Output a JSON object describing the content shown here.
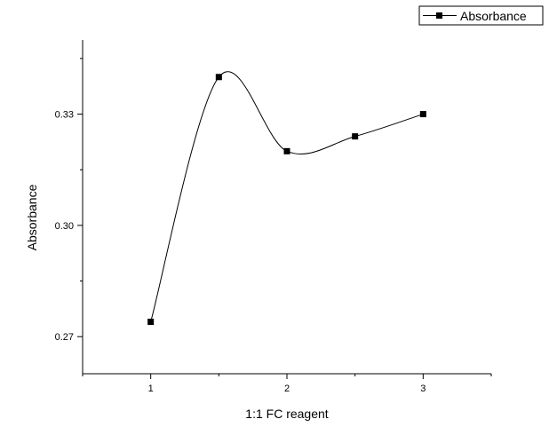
{
  "chart_data": {
    "type": "line",
    "xlabel": "1:1 FC reagent",
    "ylabel": "Absorbance",
    "xlim": [
      0.5,
      3.5
    ],
    "ylim": [
      0.26,
      0.35
    ],
    "x_ticks": [
      1,
      2,
      3
    ],
    "x_tick_labels": [
      "1",
      "2",
      "3"
    ],
    "y_ticks": [
      0.27,
      0.3,
      0.33
    ],
    "y_tick_labels": [
      "0.27",
      "0.30",
      "0.33"
    ],
    "grid": false,
    "legend": "top-right",
    "series": [
      {
        "name": "Absorbance",
        "marker": "square",
        "line": "spline",
        "color": "#000000",
        "x": [
          1,
          1.5,
          2,
          2.5,
          3
        ],
        "y": [
          0.274,
          0.34,
          0.32,
          0.324,
          0.33
        ]
      }
    ]
  }
}
